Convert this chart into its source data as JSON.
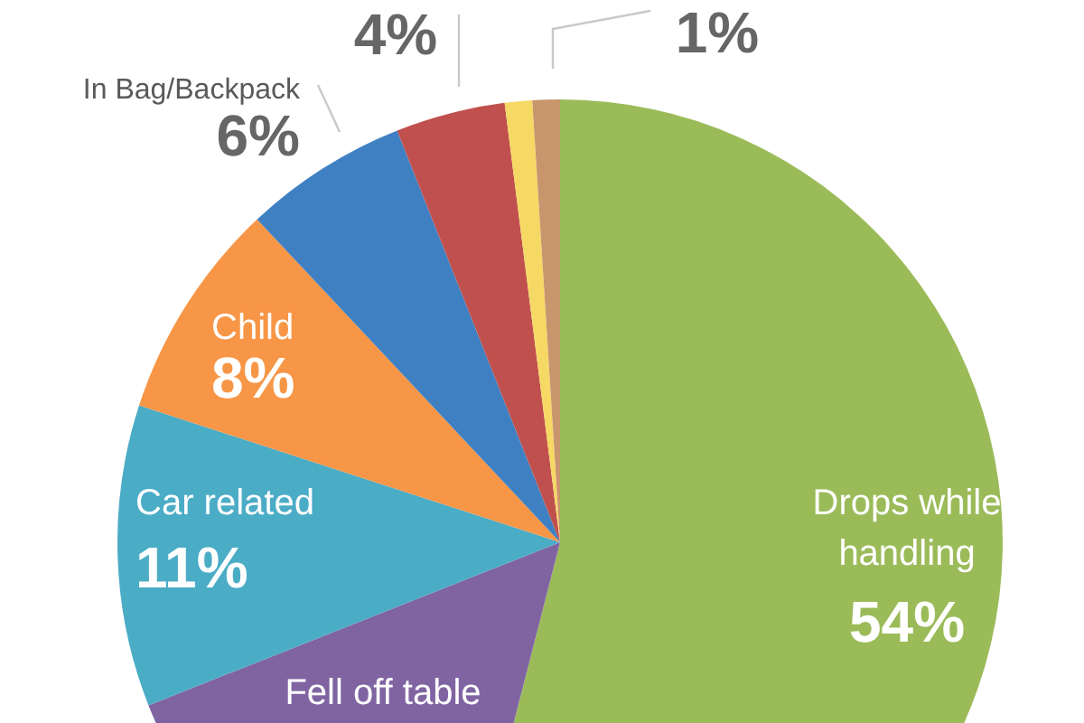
{
  "chart_data": {
    "type": "pie",
    "categories": [
      "Drops while handling",
      "Fell off table",
      "Car related",
      "Child",
      "In Bag/Backpack",
      null,
      null,
      null
    ],
    "values": [
      54,
      15,
      11,
      8,
      6,
      4,
      1,
      1
    ],
    "colors": [
      "#9bbb59",
      "#8064a2",
      "#4bacc6",
      "#f79646",
      "#3f80c2",
      "#c0504d",
      "#f6d865",
      "#c8966c"
    ],
    "value_labels": [
      "54%",
      null,
      "11%",
      "8%",
      "6%",
      "4%",
      null,
      "1%"
    ]
  }
}
